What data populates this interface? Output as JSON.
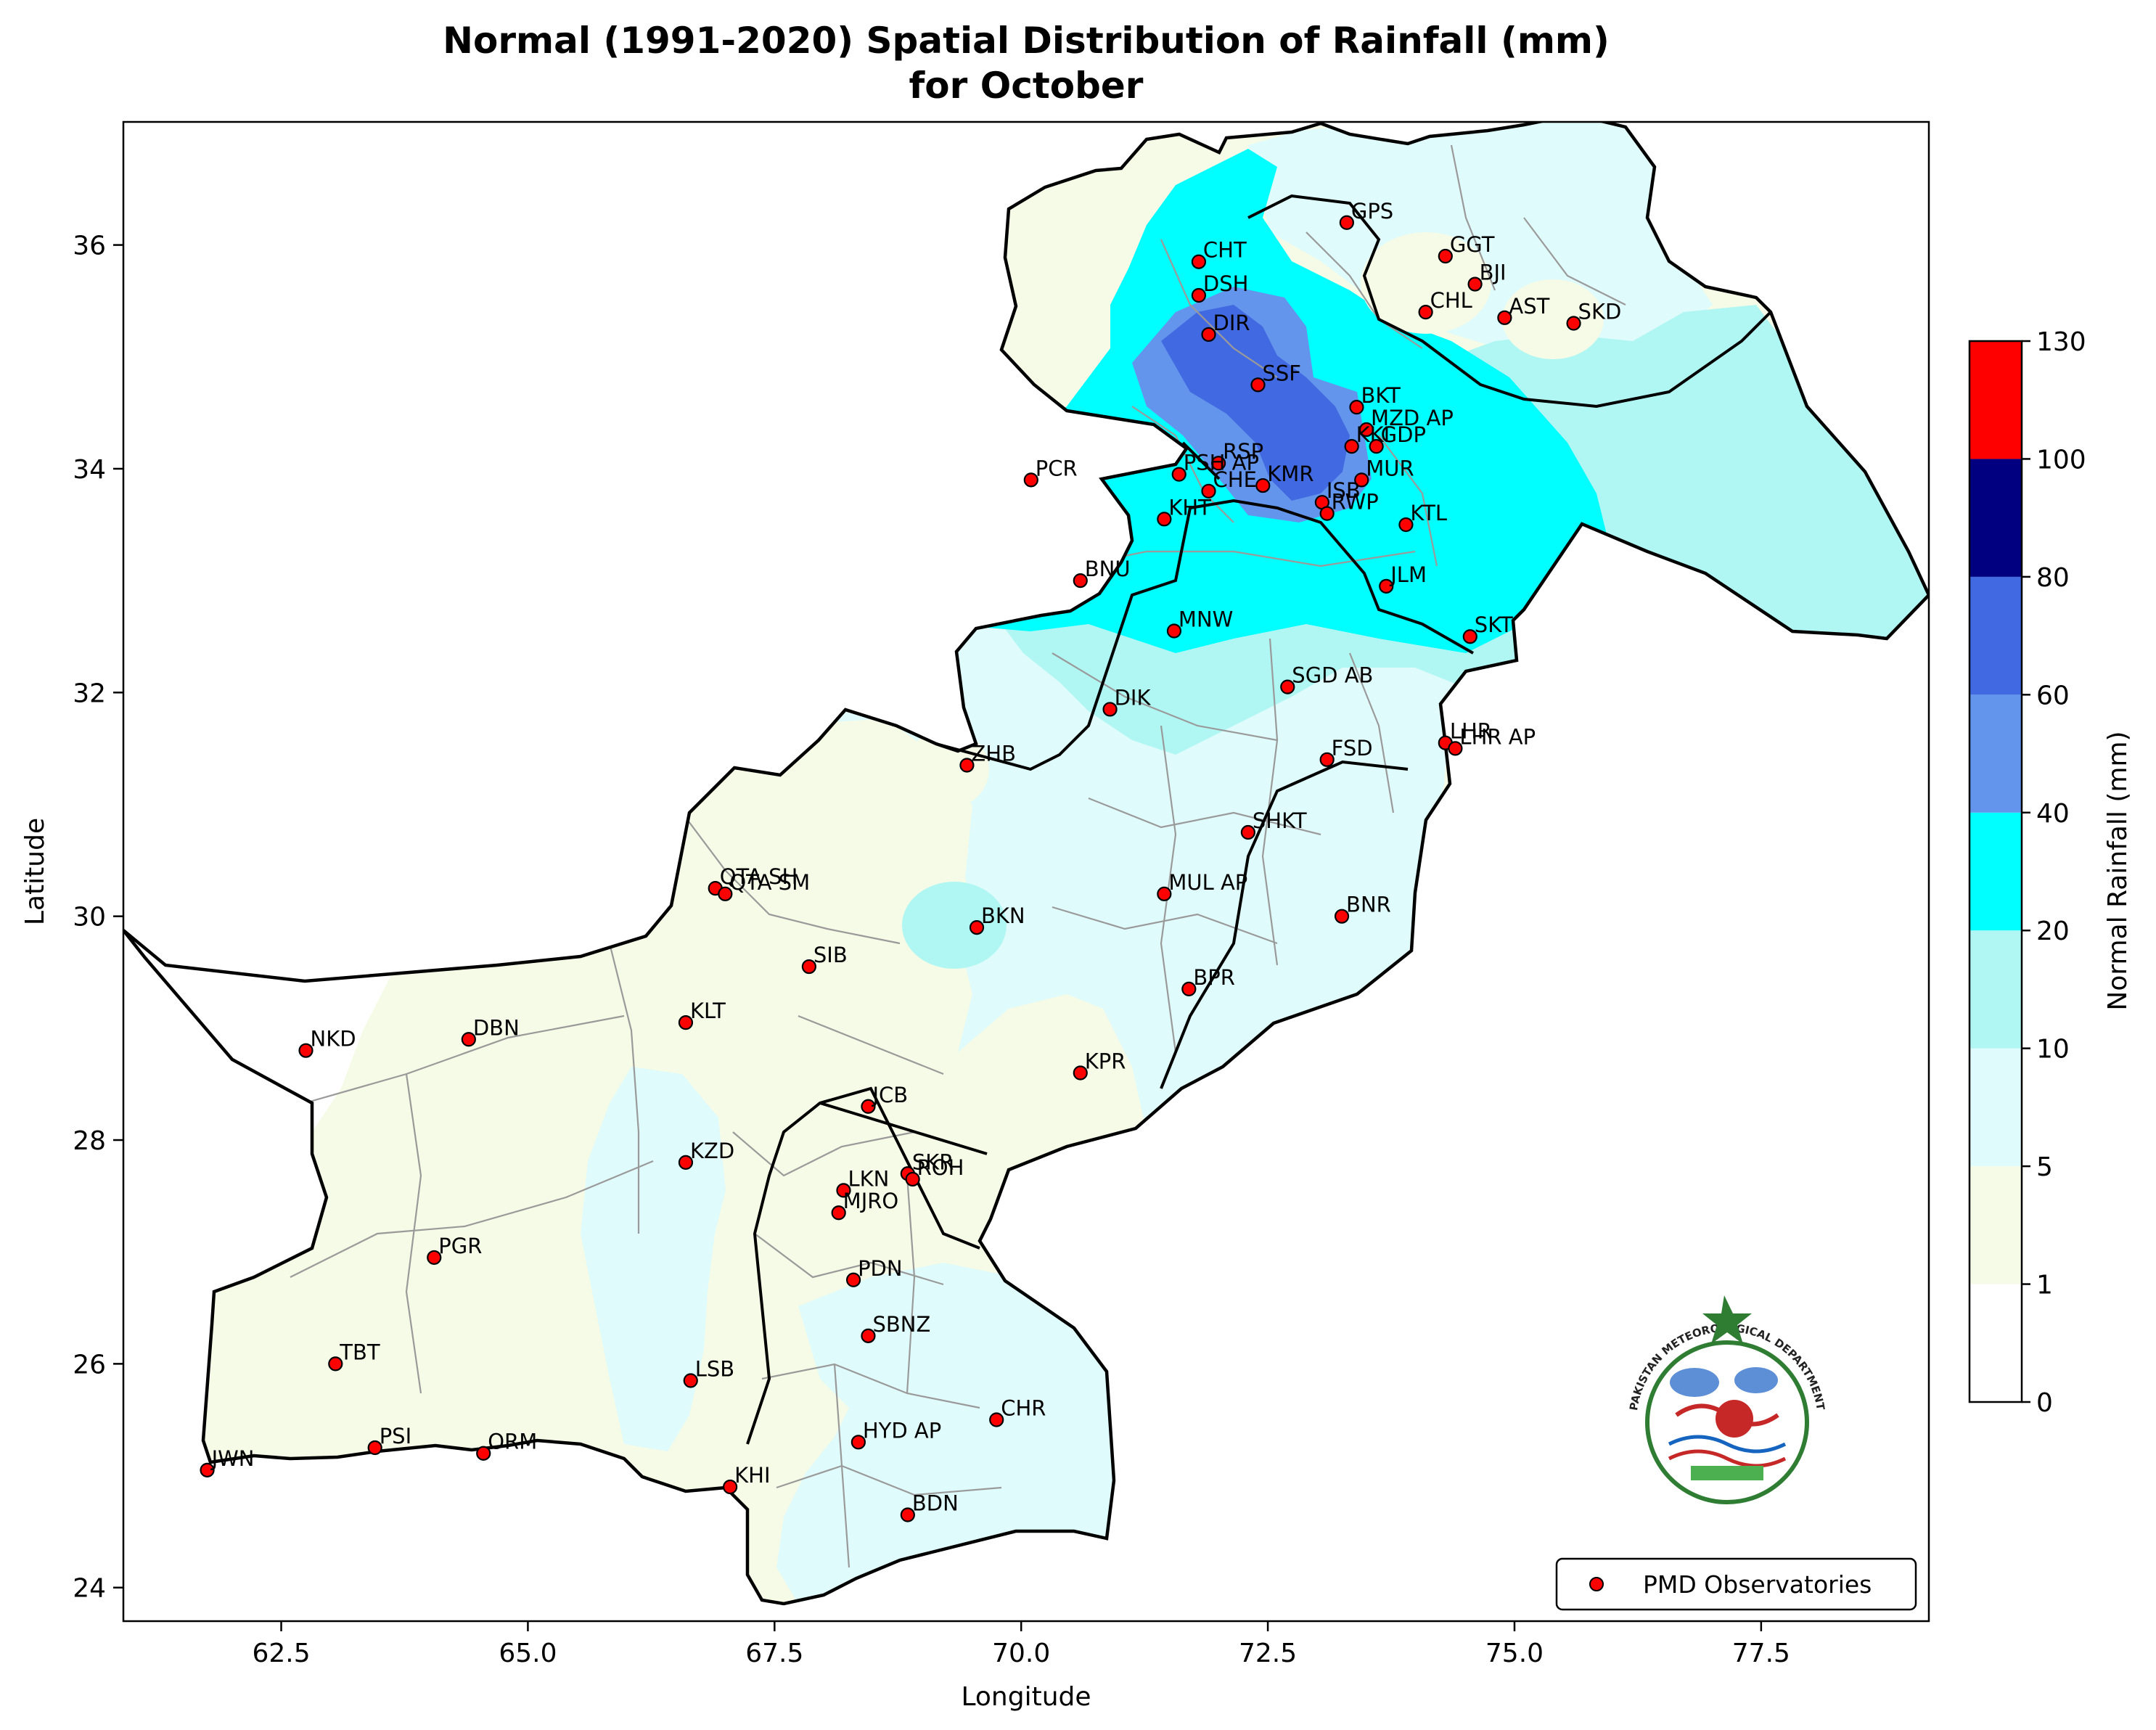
{
  "title_line1": "Normal (1991-2020) Spatial Distribution of Rainfall (mm)",
  "title_line2": "for October",
  "xlabel": "Longitude",
  "ylabel": "Latitude",
  "xlim": [
    60.9,
    79.2
  ],
  "ylim": [
    23.7,
    37.1
  ],
  "xticks": [
    "62.5",
    "65.0",
    "67.5",
    "70.0",
    "72.5",
    "75.0",
    "77.5"
  ],
  "yticks": [
    "24",
    "26",
    "28",
    "30",
    "32",
    "34",
    "36"
  ],
  "colorbar": {
    "label": "Normal Rainfall (mm)",
    "levels": [
      {
        "from": 0,
        "to": 1,
        "color": "#ffffff"
      },
      {
        "from": 1,
        "to": 5,
        "color": "#f5fbe6"
      },
      {
        "from": 5,
        "to": 10,
        "color": "#e0fbfb"
      },
      {
        "from": 10,
        "to": 20,
        "color": "#b0f7f4"
      },
      {
        "from": 20,
        "to": 40,
        "color": "#00ffff"
      },
      {
        "from": 40,
        "to": 60,
        "color": "#6495ed"
      },
      {
        "from": 60,
        "to": 80,
        "color": "#4169e1"
      },
      {
        "from": 80,
        "to": 100,
        "color": "#000080"
      },
      {
        "from": 100,
        "to": 130,
        "color": "#ff0000"
      }
    ],
    "tick_labels": [
      "0",
      "1",
      "5",
      "10",
      "20",
      "40",
      "60",
      "80",
      "100",
      "130"
    ]
  },
  "legend_label": "PMD Observatories",
  "logo_text": "PAKISTAN METEOROLOGICAL DEPARTMENT",
  "stations": [
    {
      "id": "GPS",
      "lon": 73.3,
      "lat": 36.2
    },
    {
      "id": "GGT",
      "lon": 74.3,
      "lat": 35.9
    },
    {
      "id": "CHT",
      "lon": 71.8,
      "lat": 35.85
    },
    {
      "id": "BJI",
      "lon": 74.6,
      "lat": 35.65
    },
    {
      "id": "DSH",
      "lon": 71.8,
      "lat": 35.55
    },
    {
      "id": "CHL",
      "lon": 74.1,
      "lat": 35.4
    },
    {
      "id": "AST",
      "lon": 74.9,
      "lat": 35.35
    },
    {
      "id": "SKD",
      "lon": 75.6,
      "lat": 35.3
    },
    {
      "id": "DIR",
      "lon": 71.9,
      "lat": 35.2
    },
    {
      "id": "SSF",
      "lon": 72.4,
      "lat": 34.75
    },
    {
      "id": "BKT",
      "lon": 73.4,
      "lat": 34.55
    },
    {
      "id": "MZD AP",
      "lon": 73.5,
      "lat": 34.35
    },
    {
      "id": "RSP",
      "lon": 72.0,
      "lat": 34.05
    },
    {
      "id": "KKI",
      "lon": 73.35,
      "lat": 34.2
    },
    {
      "id": "GDP",
      "lon": 73.6,
      "lat": 34.2
    },
    {
      "id": "PCR",
      "lon": 70.1,
      "lat": 33.9
    },
    {
      "id": "PSH AP",
      "lon": 71.6,
      "lat": 33.95
    },
    {
      "id": "KMR",
      "lon": 72.45,
      "lat": 33.85
    },
    {
      "id": "MUR",
      "lon": 73.45,
      "lat": 33.9
    },
    {
      "id": "CHE",
      "lon": 71.9,
      "lat": 33.8
    },
    {
      "id": "ISB",
      "lon": 73.05,
      "lat": 33.7
    },
    {
      "id": "KHT",
      "lon": 71.45,
      "lat": 33.55
    },
    {
      "id": "RWP",
      "lon": 73.1,
      "lat": 33.6
    },
    {
      "id": "KTL",
      "lon": 73.9,
      "lat": 33.5
    },
    {
      "id": "BNU",
      "lon": 70.6,
      "lat": 33.0
    },
    {
      "id": "JLM",
      "lon": 73.7,
      "lat": 32.95
    },
    {
      "id": "MNW",
      "lon": 71.55,
      "lat": 32.55
    },
    {
      "id": "SKT",
      "lon": 74.55,
      "lat": 32.5
    },
    {
      "id": "SGD AB",
      "lon": 72.7,
      "lat": 32.05
    },
    {
      "id": "DIK",
      "lon": 70.9,
      "lat": 31.85
    },
    {
      "id": "LHR",
      "lon": 74.3,
      "lat": 31.55
    },
    {
      "id": "LHR AP",
      "lon": 74.4,
      "lat": 31.5
    },
    {
      "id": "FSD",
      "lon": 73.1,
      "lat": 31.4
    },
    {
      "id": "ZHB",
      "lon": 69.45,
      "lat": 31.35
    },
    {
      "id": "SHKT",
      "lon": 72.3,
      "lat": 30.75
    },
    {
      "id": "QTA SH",
      "lon": 66.9,
      "lat": 30.25
    },
    {
      "id": "QTA SM",
      "lon": 67.0,
      "lat": 30.2
    },
    {
      "id": "MUL AP",
      "lon": 71.45,
      "lat": 30.2
    },
    {
      "id": "BNR",
      "lon": 73.25,
      "lat": 30.0
    },
    {
      "id": "BKN",
      "lon": 69.55,
      "lat": 29.9
    },
    {
      "id": "SIB",
      "lon": 67.85,
      "lat": 29.55
    },
    {
      "id": "BPR",
      "lon": 71.7,
      "lat": 29.35
    },
    {
      "id": "KLT",
      "lon": 66.6,
      "lat": 29.05
    },
    {
      "id": "NKD",
      "lon": 62.75,
      "lat": 28.8
    },
    {
      "id": "DBN",
      "lon": 64.4,
      "lat": 28.9
    },
    {
      "id": "KPR",
      "lon": 70.6,
      "lat": 28.6
    },
    {
      "id": "JCB",
      "lon": 68.45,
      "lat": 28.3
    },
    {
      "id": "KZD",
      "lon": 66.6,
      "lat": 27.8
    },
    {
      "id": "SKR",
      "lon": 68.85,
      "lat": 27.7
    },
    {
      "id": "ROH",
      "lon": 68.9,
      "lat": 27.65
    },
    {
      "id": "LKN",
      "lon": 68.2,
      "lat": 27.55
    },
    {
      "id": "MJRO",
      "lon": 68.15,
      "lat": 27.35
    },
    {
      "id": "PGR",
      "lon": 64.05,
      "lat": 26.95
    },
    {
      "id": "PDN",
      "lon": 68.3,
      "lat": 26.75
    },
    {
      "id": "SBNZ",
      "lon": 68.45,
      "lat": 26.25
    },
    {
      "id": "TBT",
      "lon": 63.05,
      "lat": 26.0
    },
    {
      "id": "LSB",
      "lon": 66.65,
      "lat": 25.85
    },
    {
      "id": "CHR",
      "lon": 69.75,
      "lat": 25.5
    },
    {
      "id": "HYD AP",
      "lon": 68.35,
      "lat": 25.3
    },
    {
      "id": "PSI",
      "lon": 63.45,
      "lat": 25.25
    },
    {
      "id": "ORM",
      "lon": 64.55,
      "lat": 25.2
    },
    {
      "id": "JWN",
      "lon": 61.75,
      "lat": 25.05
    },
    {
      "id": "KHI",
      "lon": 67.05,
      "lat": 24.9
    },
    {
      "id": "BDN",
      "lon": 68.85,
      "lat": 24.65
    }
  ]
}
